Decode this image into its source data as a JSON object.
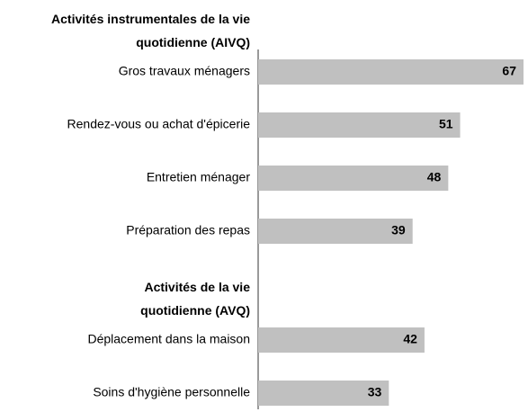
{
  "chart_data": {
    "type": "bar",
    "color": "#c0c0c0",
    "groups": [
      {
        "name": "Activités instrumentales de la vie quotidienne (AIVQ)",
        "categories": [
          "Gros travaux ménagers",
          "Rendez-vous ou achat d'épicerie",
          "Entretien ménager",
          "Préparation des repas"
        ],
        "values": [
          67,
          51,
          48,
          39
        ]
      },
      {
        "name": "Activités de la vie quotidienne (AVQ)",
        "categories": [
          "Déplacement dans la maison",
          "Soins d'hygiène personnelle"
        ],
        "values": [
          42,
          33
        ]
      }
    ]
  }
}
